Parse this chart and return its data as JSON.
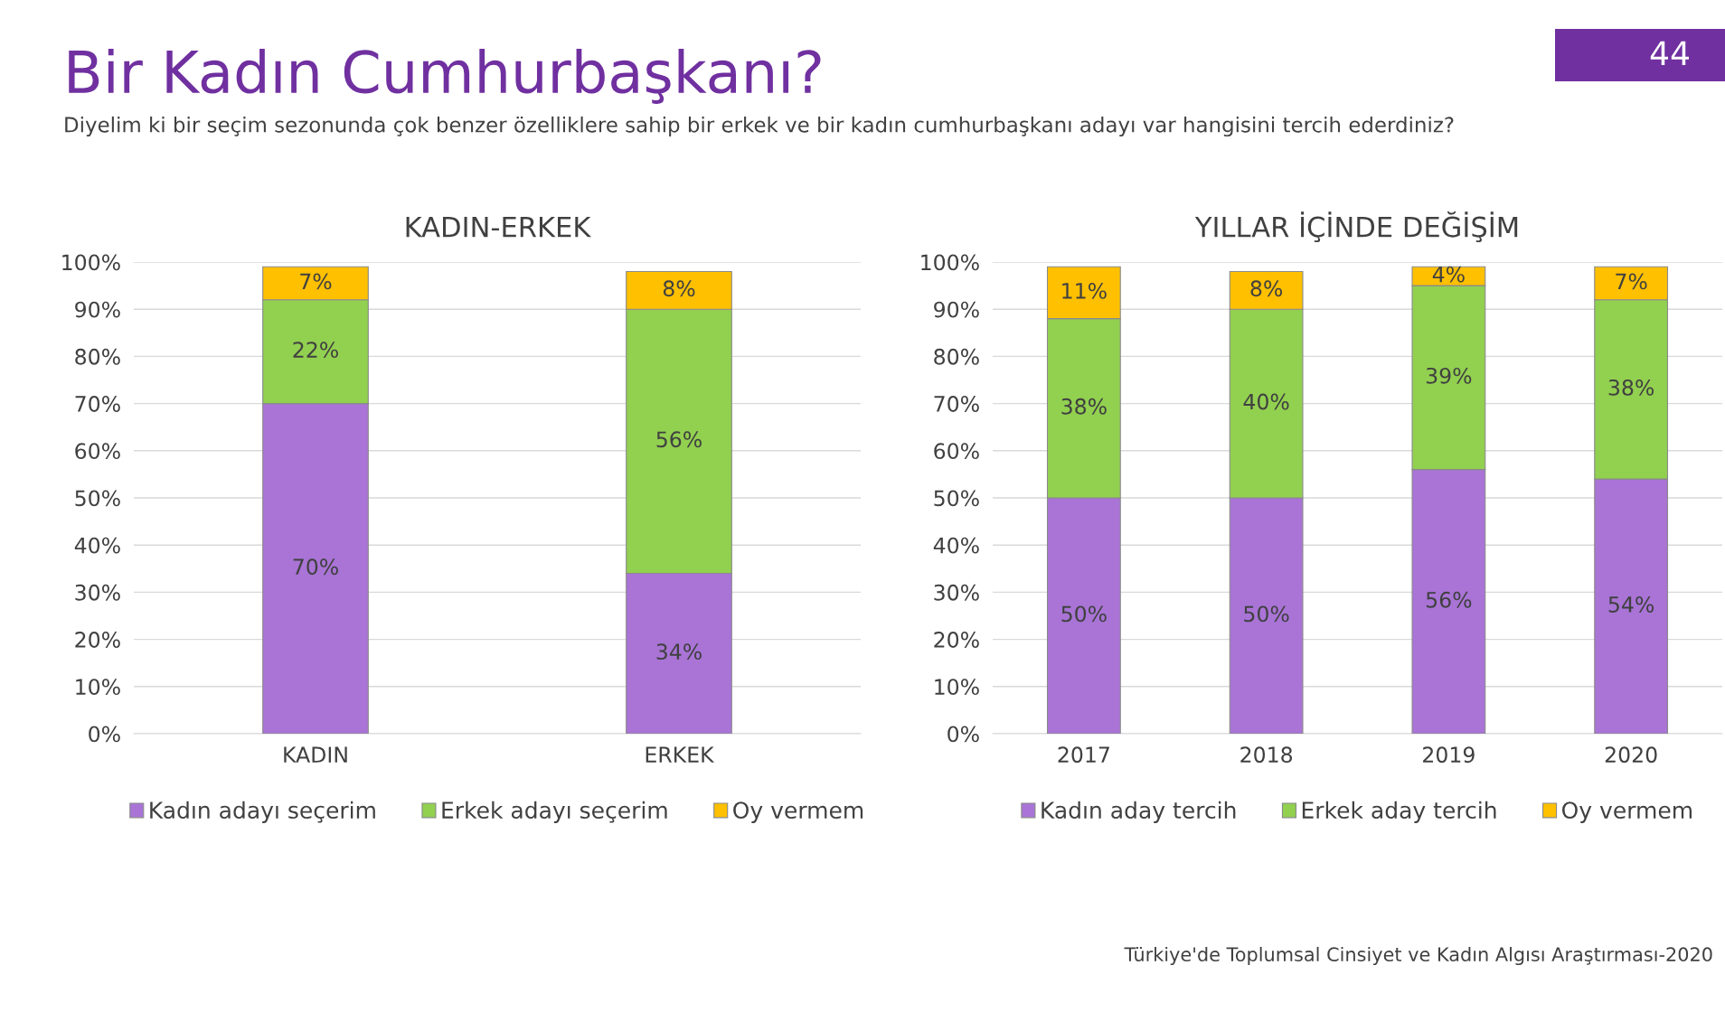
{
  "chart_data": [
    {
      "type": "bar",
      "title": "KADIN-ERKEK",
      "stacked": true,
      "categories": [
        "KADIN",
        "ERKEK"
      ],
      "series": [
        {
          "name": "Kadın adayı seçerim",
          "color": "#a974d6",
          "values": [
            70,
            34
          ],
          "value_labels": [
            "70%",
            "34%"
          ]
        },
        {
          "name": "Erkek adayı seçerim",
          "color": "#92d050",
          "values": [
            22,
            56
          ],
          "value_labels": [
            "22%",
            "56%"
          ]
        },
        {
          "name": "Oy vermem",
          "color": "#ffc000",
          "values": [
            7,
            8
          ],
          "value_labels": [
            "7%",
            "8%"
          ]
        }
      ],
      "ylim": [
        0,
        100
      ],
      "yticks": [
        {
          "value": 0,
          "label": "0%"
        },
        {
          "value": 10,
          "label": "10%"
        },
        {
          "value": 20,
          "label": "20%"
        },
        {
          "value": 30,
          "label": "30%"
        },
        {
          "value": 40,
          "label": "40%"
        },
        {
          "value": 50,
          "label": "50%"
        },
        {
          "value": 60,
          "label": "60%"
        },
        {
          "value": 70,
          "label": "70%"
        },
        {
          "value": 80,
          "label": "80%"
        },
        {
          "value": 90,
          "label": "90%"
        },
        {
          "value": 100,
          "label": "100%"
        }
      ],
      "grid": "y",
      "legend": "bottom",
      "annotations": [
        "Bir Kadın Cumhurbaşkanı?",
        "Diyelim ki bir seçim sezonunda çok benzer özelliklere sahip bir erkek ve bir kadın cumhurbaşkanı adayı var hangisini tercih ederdiniz?",
        "44"
      ]
    },
    {
      "type": "bar",
      "title": "YILLAR İÇİNDE DEĞİŞİM",
      "stacked": true,
      "categories": [
        "2017",
        "2018",
        "2019",
        "2020"
      ],
      "series": [
        {
          "name": "Kadın aday tercih",
          "color": "#a974d6",
          "values": [
            50,
            50,
            56,
            54
          ],
          "value_labels": [
            "50%",
            "50%",
            "56%",
            "54%"
          ]
        },
        {
          "name": "Erkek aday tercih",
          "color": "#92d050",
          "values": [
            38,
            40,
            39,
            38
          ],
          "value_labels": [
            "38%",
            "40%",
            "39%",
            "38%"
          ]
        },
        {
          "name": "Oy vermem",
          "color": "#ffc000",
          "values": [
            11,
            8,
            4,
            7
          ],
          "value_labels": [
            "11%",
            "8%",
            "4%",
            "7%"
          ]
        }
      ],
      "ylim": [
        0,
        100
      ],
      "yticks": [
        {
          "value": 0,
          "label": "0%"
        },
        {
          "value": 10,
          "label": "10%"
        },
        {
          "value": 20,
          "label": "20%"
        },
        {
          "value": 30,
          "label": "30%"
        },
        {
          "value": 40,
          "label": "40%"
        },
        {
          "value": 50,
          "label": "50%"
        },
        {
          "value": 60,
          "label": "60%"
        },
        {
          "value": 70,
          "label": "70%"
        },
        {
          "value": 80,
          "label": "80%"
        },
        {
          "value": 90,
          "label": "90%"
        },
        {
          "value": 100,
          "label": "100%"
        }
      ],
      "grid": "y",
      "legend": "bottom",
      "annotations": [
        "Türkiye'de Toplumsal Cinsiyet ve Kadın Algısı Araştırması-2020"
      ]
    }
  ]
}
